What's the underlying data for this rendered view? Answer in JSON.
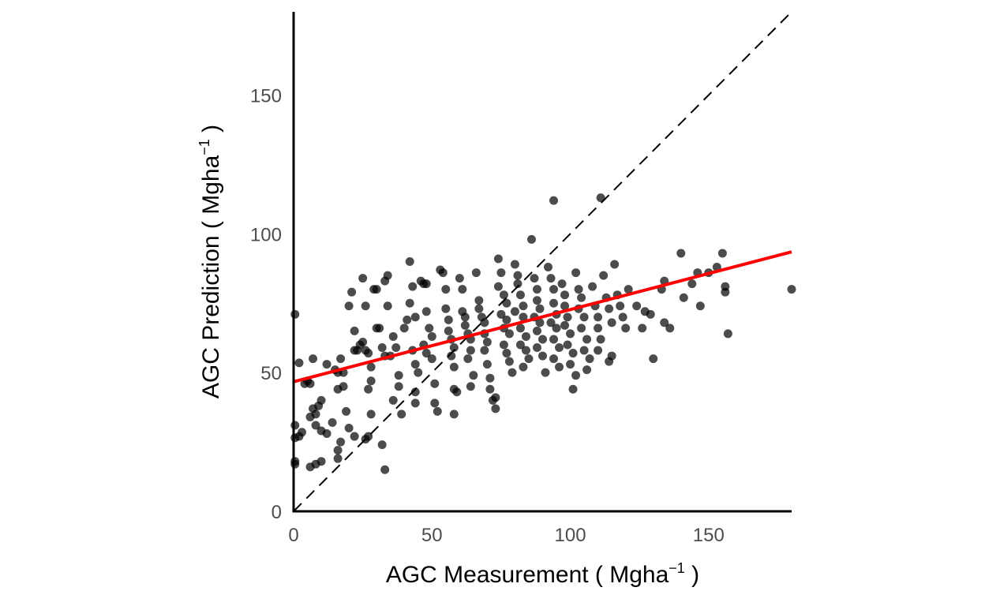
{
  "chart_data": {
    "type": "scatter",
    "title": "",
    "xlabel": {
      "prefix": "AGC Measurement ( Mgha",
      "superscript": "−1",
      "suffix": " )"
    },
    "ylabel": {
      "prefix": "AGC Prediction ( Mgha",
      "superscript": "−1",
      "suffix": " )"
    },
    "xlim": [
      0,
      180
    ],
    "ylim": [
      0,
      180
    ],
    "x_ticks": [
      0,
      50,
      100,
      150
    ],
    "y_ticks": [
      0,
      50,
      100,
      150
    ],
    "x_tick_labels": [
      "0",
      "50",
      "100",
      "150"
    ],
    "y_tick_labels": [
      "0",
      "50",
      "100",
      "150"
    ],
    "grid": false,
    "legend": "none",
    "colors": {
      "points": "#000000",
      "point_opacity": 0.7,
      "fit_line": "#ff0000",
      "identity_line": "#000000",
      "axis": "#000000"
    },
    "identity_line": {
      "label": "1:1 line",
      "style": "dashed",
      "from": [
        0,
        0
      ],
      "to": [
        180,
        180
      ]
    },
    "fit_line": {
      "label": "linear fit",
      "intercept": 46.7,
      "slope": 0.26
    },
    "points": [
      [
        0.5,
        71
      ],
      [
        2,
        53.5
      ],
      [
        0.5,
        31
      ],
      [
        0.5,
        26.5
      ],
      [
        0.5,
        18
      ],
      [
        0.5,
        17
      ],
      [
        2,
        27
      ],
      [
        3,
        28.5
      ],
      [
        4,
        46
      ],
      [
        5,
        47
      ],
      [
        6,
        46
      ],
      [
        7,
        55
      ],
      [
        6,
        34
      ],
      [
        7,
        37
      ],
      [
        8,
        35
      ],
      [
        9,
        38
      ],
      [
        10,
        40
      ],
      [
        8,
        31
      ],
      [
        10,
        29
      ],
      [
        12,
        28
      ],
      [
        14,
        32
      ],
      [
        6,
        16
      ],
      [
        8,
        17
      ],
      [
        10,
        18
      ],
      [
        12,
        53
      ],
      [
        15,
        51
      ],
      [
        16,
        50
      ],
      [
        17,
        55
      ],
      [
        18,
        50
      ],
      [
        16,
        44
      ],
      [
        18,
        45
      ],
      [
        19,
        36
      ],
      [
        20,
        30
      ],
      [
        22,
        27
      ],
      [
        16,
        22
      ],
      [
        16,
        19
      ],
      [
        17,
        25
      ],
      [
        20,
        74
      ],
      [
        21,
        79
      ],
      [
        22,
        65
      ],
      [
        22,
        58
      ],
      [
        23,
        58
      ],
      [
        24,
        60
      ],
      [
        25,
        61
      ],
      [
        25,
        84
      ],
      [
        26,
        74
      ],
      [
        26,
        58
      ],
      [
        27,
        57
      ],
      [
        28,
        52
      ],
      [
        28,
        47
      ],
      [
        27,
        44
      ],
      [
        27,
        27
      ],
      [
        26,
        26
      ],
      [
        28,
        35
      ],
      [
        29,
        80
      ],
      [
        30,
        80
      ],
      [
        30,
        66
      ],
      [
        31,
        66
      ],
      [
        32,
        59
      ],
      [
        33,
        56
      ],
      [
        32,
        24
      ],
      [
        33,
        15
      ],
      [
        34,
        85
      ],
      [
        33,
        83
      ],
      [
        34,
        74
      ],
      [
        35,
        56
      ],
      [
        36,
        63
      ],
      [
        37,
        59
      ],
      [
        38,
        49
      ],
      [
        36,
        40
      ],
      [
        38,
        45
      ],
      [
        39,
        35
      ],
      [
        40,
        66
      ],
      [
        41,
        69
      ],
      [
        42,
        75
      ],
      [
        43,
        81
      ],
      [
        44,
        70
      ],
      [
        42,
        90
      ],
      [
        43,
        58
      ],
      [
        44,
        53
      ],
      [
        45,
        50
      ],
      [
        44,
        43
      ],
      [
        44,
        39
      ],
      [
        46,
        83
      ],
      [
        47,
        82
      ],
      [
        48,
        82
      ],
      [
        48,
        72
      ],
      [
        49,
        66
      ],
      [
        50,
        63
      ],
      [
        47,
        60
      ],
      [
        48,
        57
      ],
      [
        50,
        55
      ],
      [
        51,
        46
      ],
      [
        51,
        39
      ],
      [
        52,
        36
      ],
      [
        53,
        87
      ],
      [
        54,
        86
      ],
      [
        55,
        80
      ],
      [
        55,
        73
      ],
      [
        56,
        69
      ],
      [
        56,
        65
      ],
      [
        57,
        62
      ],
      [
        58,
        59
      ],
      [
        57,
        56
      ],
      [
        58,
        52
      ],
      [
        58,
        44
      ],
      [
        59,
        43
      ],
      [
        58,
        35
      ],
      [
        60,
        84
      ],
      [
        61,
        80
      ],
      [
        61,
        72
      ],
      [
        62,
        70
      ],
      [
        62,
        67
      ],
      [
        63,
        64
      ],
      [
        64,
        62
      ],
      [
        64,
        58
      ],
      [
        63,
        55
      ],
      [
        65,
        49
      ],
      [
        64,
        45
      ],
      [
        66,
        86
      ],
      [
        67,
        76
      ],
      [
        67,
        73
      ],
      [
        68,
        70
      ],
      [
        69,
        68
      ],
      [
        69,
        64
      ],
      [
        70,
        61
      ],
      [
        69,
        58
      ],
      [
        70,
        53
      ],
      [
        71,
        48
      ],
      [
        71,
        44
      ],
      [
        72,
        40
      ],
      [
        73,
        41
      ],
      [
        74,
        91
      ],
      [
        75,
        86
      ],
      [
        74,
        81
      ],
      [
        76,
        78
      ],
      [
        77,
        75
      ],
      [
        75,
        71
      ],
      [
        77,
        69
      ],
      [
        76,
        66
      ],
      [
        78,
        64
      ],
      [
        76,
        60
      ],
      [
        77,
        57
      ],
      [
        78,
        54
      ],
      [
        79,
        50
      ],
      [
        73,
        37
      ],
      [
        80,
        89
      ],
      [
        81,
        85
      ],
      [
        81,
        82
      ],
      [
        82,
        78
      ],
      [
        83,
        74
      ],
      [
        80,
        72
      ],
      [
        83,
        70
      ],
      [
        82,
        66
      ],
      [
        84,
        63
      ],
      [
        82,
        60
      ],
      [
        84,
        58
      ],
      [
        85,
        55
      ],
      [
        83,
        52
      ],
      [
        86,
        98
      ],
      [
        87,
        84
      ],
      [
        88,
        80
      ],
      [
        88,
        76
      ],
      [
        89,
        73
      ],
      [
        87,
        70
      ],
      [
        89,
        68
      ],
      [
        88,
        65
      ],
      [
        90,
        62
      ],
      [
        88,
        59
      ],
      [
        90,
        56
      ],
      [
        91,
        50
      ],
      [
        92,
        88
      ],
      [
        93,
        84
      ],
      [
        94,
        80
      ],
      [
        94,
        75
      ],
      [
        95,
        71
      ],
      [
        93,
        68
      ],
      [
        95,
        66
      ],
      [
        94,
        62
      ],
      [
        96,
        59
      ],
      [
        94,
        55
      ],
      [
        96,
        52
      ],
      [
        94,
        112
      ],
      [
        97,
        82
      ],
      [
        98,
        78
      ],
      [
        98,
        74
      ],
      [
        99,
        70
      ],
      [
        98,
        67
      ],
      [
        100,
        64
      ],
      [
        99,
        60
      ],
      [
        101,
        57
      ],
      [
        100,
        53
      ],
      [
        102,
        49
      ],
      [
        101,
        44
      ],
      [
        102,
        86
      ],
      [
        103,
        80
      ],
      [
        104,
        77
      ],
      [
        103,
        73
      ],
      [
        105,
        70
      ],
      [
        104,
        66
      ],
      [
        106,
        62
      ],
      [
        105,
        58
      ],
      [
        107,
        55
      ],
      [
        106,
        51
      ],
      [
        108,
        81
      ],
      [
        109,
        74
      ],
      [
        110,
        70
      ],
      [
        110,
        66
      ],
      [
        111,
        62
      ],
      [
        110,
        58
      ],
      [
        111,
        113
      ],
      [
        112,
        85
      ],
      [
        113,
        77
      ],
      [
        114,
        73
      ],
      [
        115,
        68
      ],
      [
        114,
        54
      ],
      [
        115,
        56
      ],
      [
        116,
        89
      ],
      [
        117,
        78
      ],
      [
        118,
        74
      ],
      [
        119,
        70
      ],
      [
        120,
        66
      ],
      [
        121,
        80
      ],
      [
        124,
        74
      ],
      [
        126,
        66
      ],
      [
        127,
        72
      ],
      [
        129,
        71
      ],
      [
        130,
        55
      ],
      [
        133,
        80
      ],
      [
        134,
        83
      ],
      [
        134,
        68
      ],
      [
        136,
        66
      ],
      [
        140,
        93
      ],
      [
        141,
        77
      ],
      [
        144,
        82
      ],
      [
        146,
        86
      ],
      [
        147,
        74
      ],
      [
        150,
        86
      ],
      [
        153,
        88
      ],
      [
        155,
        93
      ],
      [
        156,
        81
      ],
      [
        156,
        79
      ],
      [
        157,
        64
      ],
      [
        180,
        80
      ]
    ]
  }
}
